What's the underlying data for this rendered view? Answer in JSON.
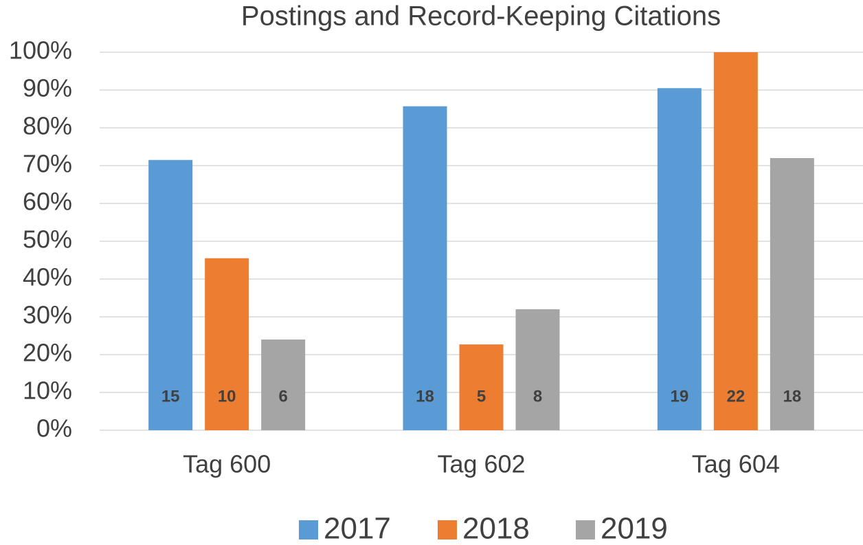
{
  "chart_data": {
    "type": "bar",
    "title": "Postings and Record-Keeping Citations",
    "categories": [
      "Tag 600",
      "Tag 602",
      "Tag 604"
    ],
    "series": [
      {
        "name": "2017",
        "color": "#5b9bd5",
        "values": [
          71.5,
          85.7,
          90.5
        ],
        "counts": [
          15,
          18,
          19
        ]
      },
      {
        "name": "2018",
        "color": "#ed7d31",
        "values": [
          45.5,
          22.7,
          100
        ],
        "counts": [
          10,
          5,
          22
        ]
      },
      {
        "name": "2019",
        "color": "#a5a5a5",
        "values": [
          24,
          32,
          72
        ],
        "counts": [
          6,
          8,
          18
        ]
      }
    ],
    "ylim": [
      0,
      100
    ],
    "yticks": [
      {
        "value": 0,
        "label": "0%"
      },
      {
        "value": 10,
        "label": "10%"
      },
      {
        "value": 20,
        "label": "20%"
      },
      {
        "value": 30,
        "label": "30%"
      },
      {
        "value": 40,
        "label": "40%"
      },
      {
        "value": 50,
        "label": "50%"
      },
      {
        "value": 60,
        "label": "60%"
      },
      {
        "value": 70,
        "label": "70%"
      },
      {
        "value": 80,
        "label": "80%"
      },
      {
        "value": 90,
        "label": "90%"
      },
      {
        "value": 100,
        "label": "100%"
      }
    ],
    "grid": true,
    "legend": "bottom"
  }
}
